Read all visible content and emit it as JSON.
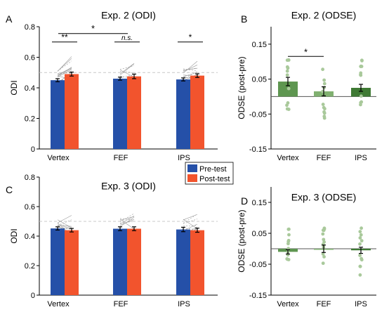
{
  "panels": [
    {
      "letter": "A",
      "title": "Exp. 2 (ODI)",
      "type": "paired-bar",
      "ylabel": "ODI",
      "ylim": [
        0,
        0.8
      ],
      "yticks": [
        "0",
        "0.2",
        "0.4",
        "0.6",
        "0.8"
      ],
      "ref_line": 0.5,
      "categories": [
        "Vertex",
        "FEF",
        "IPS"
      ],
      "series": [
        {
          "name": "Pre-test",
          "color": "#2550a8",
          "values": [
            0.45,
            0.46,
            0.455
          ],
          "err": [
            0.01,
            0.01,
            0.01
          ]
        },
        {
          "name": "Post-test",
          "color": "#f2542d",
          "values": [
            0.49,
            0.475,
            0.48
          ],
          "err": [
            0.013,
            0.015,
            0.012
          ]
        }
      ],
      "within_marks": [
        "**",
        "n.s.",
        "*"
      ],
      "between_mark": "*"
    },
    {
      "letter": "B",
      "title": "Exp. 2 (ODSE)",
      "type": "bar",
      "ylabel": "ODSE (post-pre)",
      "ylim": [
        -0.15,
        0.2
      ],
      "yticks": [
        "-0.15",
        "-0.05",
        "0.05",
        "0.15"
      ],
      "categories": [
        "Vertex",
        "FEF",
        "IPS"
      ],
      "values": [
        0.043,
        0.015,
        0.025
      ],
      "err": [
        0.012,
        0.013,
        0.01
      ],
      "colors": [
        "#5e9650",
        "#80b070",
        "#3f7a34"
      ],
      "sig_mark": "*"
    },
    {
      "letter": "C",
      "title": "Exp. 3 (ODI)",
      "type": "paired-bar",
      "ylabel": "ODI",
      "ylim": [
        0,
        0.8
      ],
      "yticks": [
        "0",
        "0.2",
        "0.4",
        "0.6",
        "0.8"
      ],
      "ref_line": 0.5,
      "categories": [
        "Vertex",
        "FEF",
        "IPS"
      ],
      "series": [
        {
          "name": "Pre-test",
          "color": "#2550a8",
          "values": [
            0.452,
            0.45,
            0.445
          ],
          "err": [
            0.011,
            0.013,
            0.015
          ]
        },
        {
          "name": "Post-test",
          "color": "#f2542d",
          "values": [
            0.44,
            0.45,
            0.44
          ],
          "err": [
            0.012,
            0.013,
            0.014
          ]
        }
      ]
    },
    {
      "letter": "D",
      "title": "Exp. 3 (ODSE)",
      "type": "bar",
      "ylabel": "ODSE (post-pre)",
      "ylim": [
        -0.15,
        0.2
      ],
      "yticks": [
        "-0.15",
        "-0.05",
        "0.05",
        "0.15"
      ],
      "categories": [
        "Vertex",
        "FEF",
        "IPS"
      ],
      "values": [
        -0.01,
        0,
        -0.005
      ],
      "err": [
        0.007,
        0.012,
        0.01
      ],
      "colors": [
        "#5e9650",
        "#80b070",
        "#3f7a34"
      ]
    }
  ],
  "legend": {
    "placement": "top-right of panel C",
    "items": [
      "Pre-test",
      "Post-test"
    ]
  },
  "chart_data": [
    {
      "type": "bar",
      "title": "Exp. 2 (ODI)",
      "ylabel": "ODI",
      "ylim": [
        0,
        0.8
      ],
      "categories": [
        "Vertex",
        "FEF",
        "IPS"
      ],
      "series": [
        {
          "name": "Pre-test",
          "values": [
            0.45,
            0.46,
            0.455
          ]
        },
        {
          "name": "Post-test",
          "values": [
            0.49,
            0.475,
            0.48
          ]
        }
      ]
    },
    {
      "type": "bar",
      "title": "Exp. 2 (ODSE)",
      "ylabel": "ODSE (post-pre)",
      "ylim": [
        -0.15,
        0.2
      ],
      "categories": [
        "Vertex",
        "FEF",
        "IPS"
      ],
      "values": [
        0.043,
        0.015,
        0.025
      ]
    },
    {
      "type": "bar",
      "title": "Exp. 3 (ODI)",
      "ylabel": "ODI",
      "ylim": [
        0,
        0.8
      ],
      "categories": [
        "Vertex",
        "FEF",
        "IPS"
      ],
      "series": [
        {
          "name": "Pre-test",
          "values": [
            0.452,
            0.45,
            0.445
          ]
        },
        {
          "name": "Post-test",
          "values": [
            0.44,
            0.45,
            0.44
          ]
        }
      ]
    },
    {
      "type": "bar",
      "title": "Exp. 3 (ODSE)",
      "ylabel": "ODSE (post-pre)",
      "ylim": [
        -0.15,
        0.2
      ],
      "categories": [
        "Vertex",
        "FEF",
        "IPS"
      ],
      "values": [
        -0.01,
        0,
        -0.005
      ]
    }
  ]
}
